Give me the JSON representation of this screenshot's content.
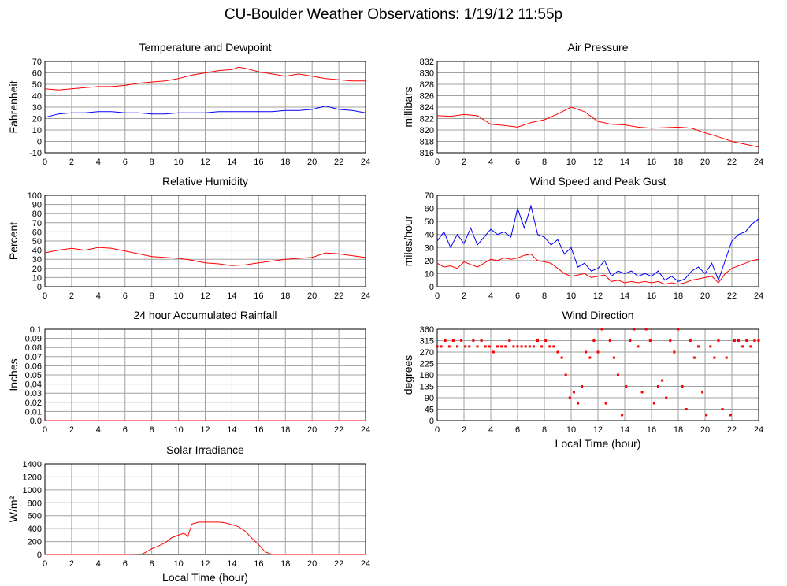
{
  "page": {
    "title": "CU-Boulder Weather Observations: 1/19/12 11:55p"
  },
  "colors": {
    "red": "#ff0000",
    "blue": "#0000ff",
    "grid": "#a0a0a0"
  },
  "chart_data": [
    {
      "id": "temp",
      "type": "line",
      "title": "Temperature and Dewpoint",
      "xlabel": "",
      "ylabel": "Fahrenheit",
      "xlim": [
        0,
        24
      ],
      "ylim": [
        -10,
        70
      ],
      "xticks": [
        0,
        2,
        4,
        6,
        8,
        10,
        12,
        14,
        16,
        18,
        20,
        22,
        24
      ],
      "yticks": [
        -10,
        0,
        10,
        20,
        30,
        40,
        50,
        60,
        70
      ],
      "grid": true,
      "series": [
        {
          "color": "#ff0000",
          "x": [
            0,
            1,
            2,
            3,
            4,
            5,
            6,
            7,
            8,
            9,
            10,
            11,
            12,
            13,
            14,
            14.5,
            15,
            16,
            17,
            18,
            19,
            20,
            21,
            22,
            23,
            24
          ],
          "y": [
            46,
            45,
            46,
            47,
            48,
            48,
            49,
            51,
            52,
            53,
            55,
            58,
            60,
            62,
            63,
            65,
            64,
            61,
            59,
            57,
            59,
            57,
            55,
            54,
            53,
            53
          ]
        },
        {
          "color": "#0000ff",
          "x": [
            0,
            1,
            2,
            3,
            4,
            5,
            6,
            7,
            8,
            9,
            10,
            11,
            12,
            13,
            14,
            15,
            16,
            17,
            18,
            19,
            20,
            21,
            22,
            23,
            24
          ],
          "y": [
            21,
            24,
            25,
            25,
            26,
            26,
            25,
            25,
            24,
            24,
            25,
            25,
            25,
            26,
            26,
            26,
            26,
            26,
            27,
            27,
            28,
            31,
            28,
            27,
            25
          ]
        }
      ]
    },
    {
      "id": "pressure",
      "type": "line",
      "title": "Air Pressure",
      "xlabel": "",
      "ylabel": "millibars",
      "xlim": [
        0,
        24
      ],
      "ylim": [
        816,
        832
      ],
      "xticks": [
        0,
        2,
        4,
        6,
        8,
        10,
        12,
        14,
        16,
        18,
        20,
        22,
        24
      ],
      "yticks": [
        816,
        818,
        820,
        822,
        824,
        826,
        828,
        830,
        832
      ],
      "grid": true,
      "series": [
        {
          "color": "#ff0000",
          "x": [
            0,
            1,
            2,
            3,
            4,
            5,
            6,
            7,
            8,
            9,
            10,
            11,
            12,
            13,
            14,
            15,
            16,
            17,
            18,
            19,
            20,
            21,
            22,
            23,
            24
          ],
          "y": [
            822.5,
            822.4,
            822.7,
            822.5,
            821.0,
            820.8,
            820.5,
            821.3,
            821.8,
            822.8,
            824.0,
            823.2,
            821.5,
            821.0,
            820.9,
            820.5,
            820.3,
            820.4,
            820.5,
            820.3,
            819.5,
            818.8,
            818.0,
            817.5,
            817.0
          ]
        }
      ]
    },
    {
      "id": "humidity",
      "type": "line",
      "title": "Relative Humidity",
      "xlabel": "",
      "ylabel": "Percent",
      "xlim": [
        0,
        24
      ],
      "ylim": [
        0,
        100
      ],
      "xticks": [
        0,
        2,
        4,
        6,
        8,
        10,
        12,
        14,
        16,
        18,
        20,
        22,
        24
      ],
      "yticks": [
        0,
        10,
        20,
        30,
        40,
        50,
        60,
        70,
        80,
        90,
        100
      ],
      "grid": true,
      "series": [
        {
          "color": "#ff0000",
          "x": [
            0,
            1,
            2,
            3,
            4,
            5,
            6,
            7,
            8,
            9,
            10,
            11,
            12,
            13,
            14,
            15,
            16,
            17,
            18,
            19,
            20,
            21,
            22,
            23,
            24
          ],
          "y": [
            37,
            40,
            42,
            40,
            43,
            42,
            39,
            36,
            33,
            32,
            31,
            29,
            26,
            25,
            23,
            24,
            26,
            28,
            30,
            31,
            32,
            37,
            36,
            34,
            32
          ]
        }
      ]
    },
    {
      "id": "wind",
      "type": "line",
      "title": "Wind Speed and Peak Gust",
      "xlabel": "",
      "ylabel": "miles/hour",
      "xlim": [
        0,
        24
      ],
      "ylim": [
        0,
        70
      ],
      "xticks": [
        0,
        2,
        4,
        6,
        8,
        10,
        12,
        14,
        16,
        18,
        20,
        22,
        24
      ],
      "yticks": [
        0,
        10,
        20,
        30,
        40,
        50,
        60,
        70
      ],
      "grid": true,
      "series": [
        {
          "color": "#0000ff",
          "x": [
            0,
            0.5,
            1,
            1.5,
            2,
            2.5,
            3,
            3.5,
            4,
            4.5,
            5,
            5.5,
            6,
            6.5,
            7,
            7.5,
            8,
            8.5,
            9,
            9.5,
            10,
            10.5,
            11,
            11.5,
            12,
            12.5,
            13,
            13.5,
            14,
            14.5,
            15,
            15.5,
            16,
            16.5,
            17,
            17.5,
            18,
            18.5,
            19,
            19.5,
            20,
            20.5,
            21,
            21.5,
            22,
            22.5,
            23,
            23.5,
            24
          ],
          "y": [
            35,
            42,
            30,
            40,
            33,
            45,
            32,
            38,
            44,
            40,
            42,
            38,
            60,
            45,
            62,
            40,
            38,
            32,
            36,
            25,
            30,
            15,
            18,
            12,
            14,
            20,
            8,
            12,
            10,
            12,
            8,
            10,
            8,
            12,
            5,
            8,
            4,
            6,
            12,
            15,
            10,
            18,
            5,
            20,
            35,
            40,
            42,
            48,
            52
          ]
        },
        {
          "color": "#ff0000",
          "x": [
            0,
            0.5,
            1,
            1.5,
            2,
            2.5,
            3,
            3.5,
            4,
            4.5,
            5,
            5.5,
            6,
            6.5,
            7,
            7.5,
            8,
            8.5,
            9,
            9.5,
            10,
            10.5,
            11,
            11.5,
            12,
            12.5,
            13,
            13.5,
            14,
            14.5,
            15,
            15.5,
            16,
            16.5,
            17,
            17.5,
            18,
            18.5,
            19,
            19.5,
            20,
            20.5,
            21,
            21.5,
            22,
            22.5,
            23,
            23.5,
            24
          ],
          "y": [
            18,
            15,
            16,
            14,
            19,
            17,
            15,
            18,
            21,
            20,
            22,
            21,
            22,
            24,
            25,
            20,
            19,
            18,
            14,
            10,
            8,
            9,
            10,
            7,
            8,
            9,
            4,
            5,
            3,
            4,
            3,
            4,
            3,
            4,
            2,
            3,
            2,
            3,
            5,
            6,
            7,
            8,
            3,
            10,
            14,
            16,
            18,
            20,
            21
          ]
        }
      ]
    },
    {
      "id": "rain",
      "type": "line",
      "title": "24 hour Accumulated Rainfall",
      "xlabel": "",
      "ylabel": "Inches",
      "xlim": [
        0,
        24
      ],
      "ylim": [
        0,
        0.1
      ],
      "xticks": [
        0,
        2,
        4,
        6,
        8,
        10,
        12,
        14,
        16,
        18,
        20,
        22,
        24
      ],
      "yticks": [
        "0.0",
        "0.01",
        "0.02",
        "0.03",
        "0.04",
        "0.05",
        "0.06",
        "0.07",
        "0.08",
        "0.09",
        "0.1"
      ],
      "grid": true,
      "series": [
        {
          "color": "#ff0000",
          "x": [
            0,
            24
          ],
          "y": [
            0,
            0
          ]
        }
      ]
    },
    {
      "id": "direction",
      "type": "scatter",
      "title": "Wind Direction",
      "xlabel": "Local Time (hour)",
      "ylabel": "degrees",
      "xlim": [
        0,
        24
      ],
      "ylim": [
        0,
        360
      ],
      "xticks": [
        0,
        2,
        4,
        6,
        8,
        10,
        12,
        14,
        16,
        18,
        20,
        22,
        24
      ],
      "yticks": [
        0,
        45,
        90,
        135,
        180,
        225,
        270,
        315,
        360
      ],
      "grid": true,
      "series": [
        {
          "color": "#ff0000",
          "x": [
            0,
            0.3,
            0.6,
            0.9,
            1.2,
            1.5,
            1.8,
            2.1,
            2.4,
            2.7,
            3.0,
            3.3,
            3.6,
            3.9,
            4.2,
            4.5,
            4.8,
            5.1,
            5.4,
            5.7,
            6.0,
            6.3,
            6.6,
            6.9,
            7.2,
            7.5,
            7.8,
            8.1,
            8.4,
            8.7,
            9.0,
            9.3,
            9.6,
            9.9,
            10.2,
            10.5,
            10.8,
            11.1,
            11.4,
            11.7,
            12.0,
            12.3,
            12.6,
            12.9,
            13.2,
            13.5,
            13.8,
            14.1,
            14.4,
            14.7,
            15.0,
            15.3,
            15.6,
            15.9,
            16.2,
            16.5,
            16.8,
            17.1,
            17.4,
            17.7,
            18.0,
            18.3,
            18.6,
            18.9,
            19.2,
            19.5,
            19.8,
            20.1,
            20.4,
            20.7,
            21.0,
            21.3,
            21.6,
            21.9,
            22.2,
            22.5,
            22.8,
            23.1,
            23.4,
            23.7,
            24.0
          ],
          "y": [
            292,
            292,
            315,
            292,
            315,
            292,
            315,
            292,
            292,
            315,
            292,
            315,
            292,
            292,
            270,
            292,
            292,
            292,
            315,
            292,
            292,
            292,
            292,
            292,
            292,
            315,
            292,
            315,
            292,
            292,
            270,
            248,
            180,
            90,
            112,
            68,
            135,
            270,
            248,
            315,
            270,
            360,
            68,
            315,
            248,
            180,
            22,
            135,
            315,
            360,
            292,
            112,
            360,
            315,
            68,
            135,
            158,
            90,
            315,
            270,
            360,
            135,
            45,
            315,
            248,
            292,
            112,
            22,
            292,
            248,
            315,
            45,
            248,
            22,
            315,
            315,
            292,
            315,
            292,
            315,
            315
          ]
        }
      ]
    },
    {
      "id": "solar",
      "type": "line",
      "title": "Solar Irradiance",
      "xlabel": "Local Time (hour)",
      "ylabel": "W/m²",
      "xlim": [
        0,
        24
      ],
      "ylim": [
        0,
        1400
      ],
      "xticks": [
        0,
        2,
        4,
        6,
        8,
        10,
        12,
        14,
        16,
        18,
        20,
        22,
        24
      ],
      "yticks": [
        0,
        200,
        400,
        600,
        800,
        1000,
        1200,
        1400
      ],
      "grid": true,
      "series": [
        {
          "color": "#ff0000",
          "x": [
            0,
            6.5,
            7.3,
            7.6,
            8.0,
            8.5,
            9.0,
            9.5,
            10.0,
            10.4,
            10.7,
            11.0,
            11.5,
            12.0,
            12.5,
            13.0,
            13.5,
            14.0,
            14.5,
            15.0,
            15.5,
            16.0,
            16.5,
            17.0,
            24
          ],
          "y": [
            0,
            0,
            10,
            40,
            90,
            130,
            180,
            260,
            300,
            330,
            280,
            470,
            500,
            500,
            500,
            500,
            490,
            460,
            430,
            360,
            250,
            150,
            40,
            0,
            0
          ]
        }
      ]
    }
  ]
}
